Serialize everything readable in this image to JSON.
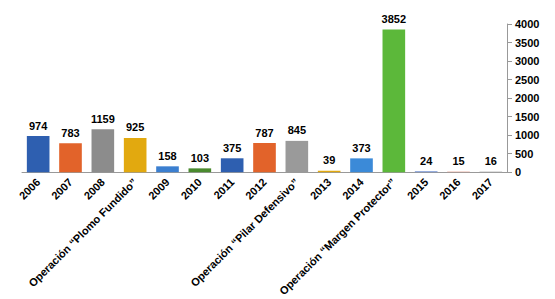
{
  "chart_data": {
    "type": "bar",
    "categories": [
      "2006",
      "2007",
      "2008",
      "Operación “Plomo Fundido”",
      "2009",
      "2010",
      "2011",
      "2012",
      "Operación “Pilar Defensivo”",
      "2013",
      "2014",
      "Operación “Margen Protector”",
      "2015",
      "2016",
      "2017"
    ],
    "values": [
      974,
      783,
      1159,
      925,
      158,
      103,
      375,
      787,
      845,
      39,
      373,
      3852,
      24,
      15,
      16
    ],
    "colors": [
      "#2e5fb0",
      "#e2632a",
      "#8c8c8c",
      "#e2a90f",
      "#3b7fd0",
      "#4a8a2e",
      "#2e5fb0",
      "#e2632a",
      "#9a9a9a",
      "#e2a90f",
      "#3b8ad8",
      "#5cb83a",
      "#6a8ad0",
      "#e09a8a",
      "#b0b0b0"
    ],
    "ylim": [
      0,
      4000
    ],
    "yticks": [
      0,
      500,
      1000,
      1500,
      2000,
      2500,
      3000,
      3500,
      4000
    ],
    "grid": false,
    "data_labels": true
  }
}
